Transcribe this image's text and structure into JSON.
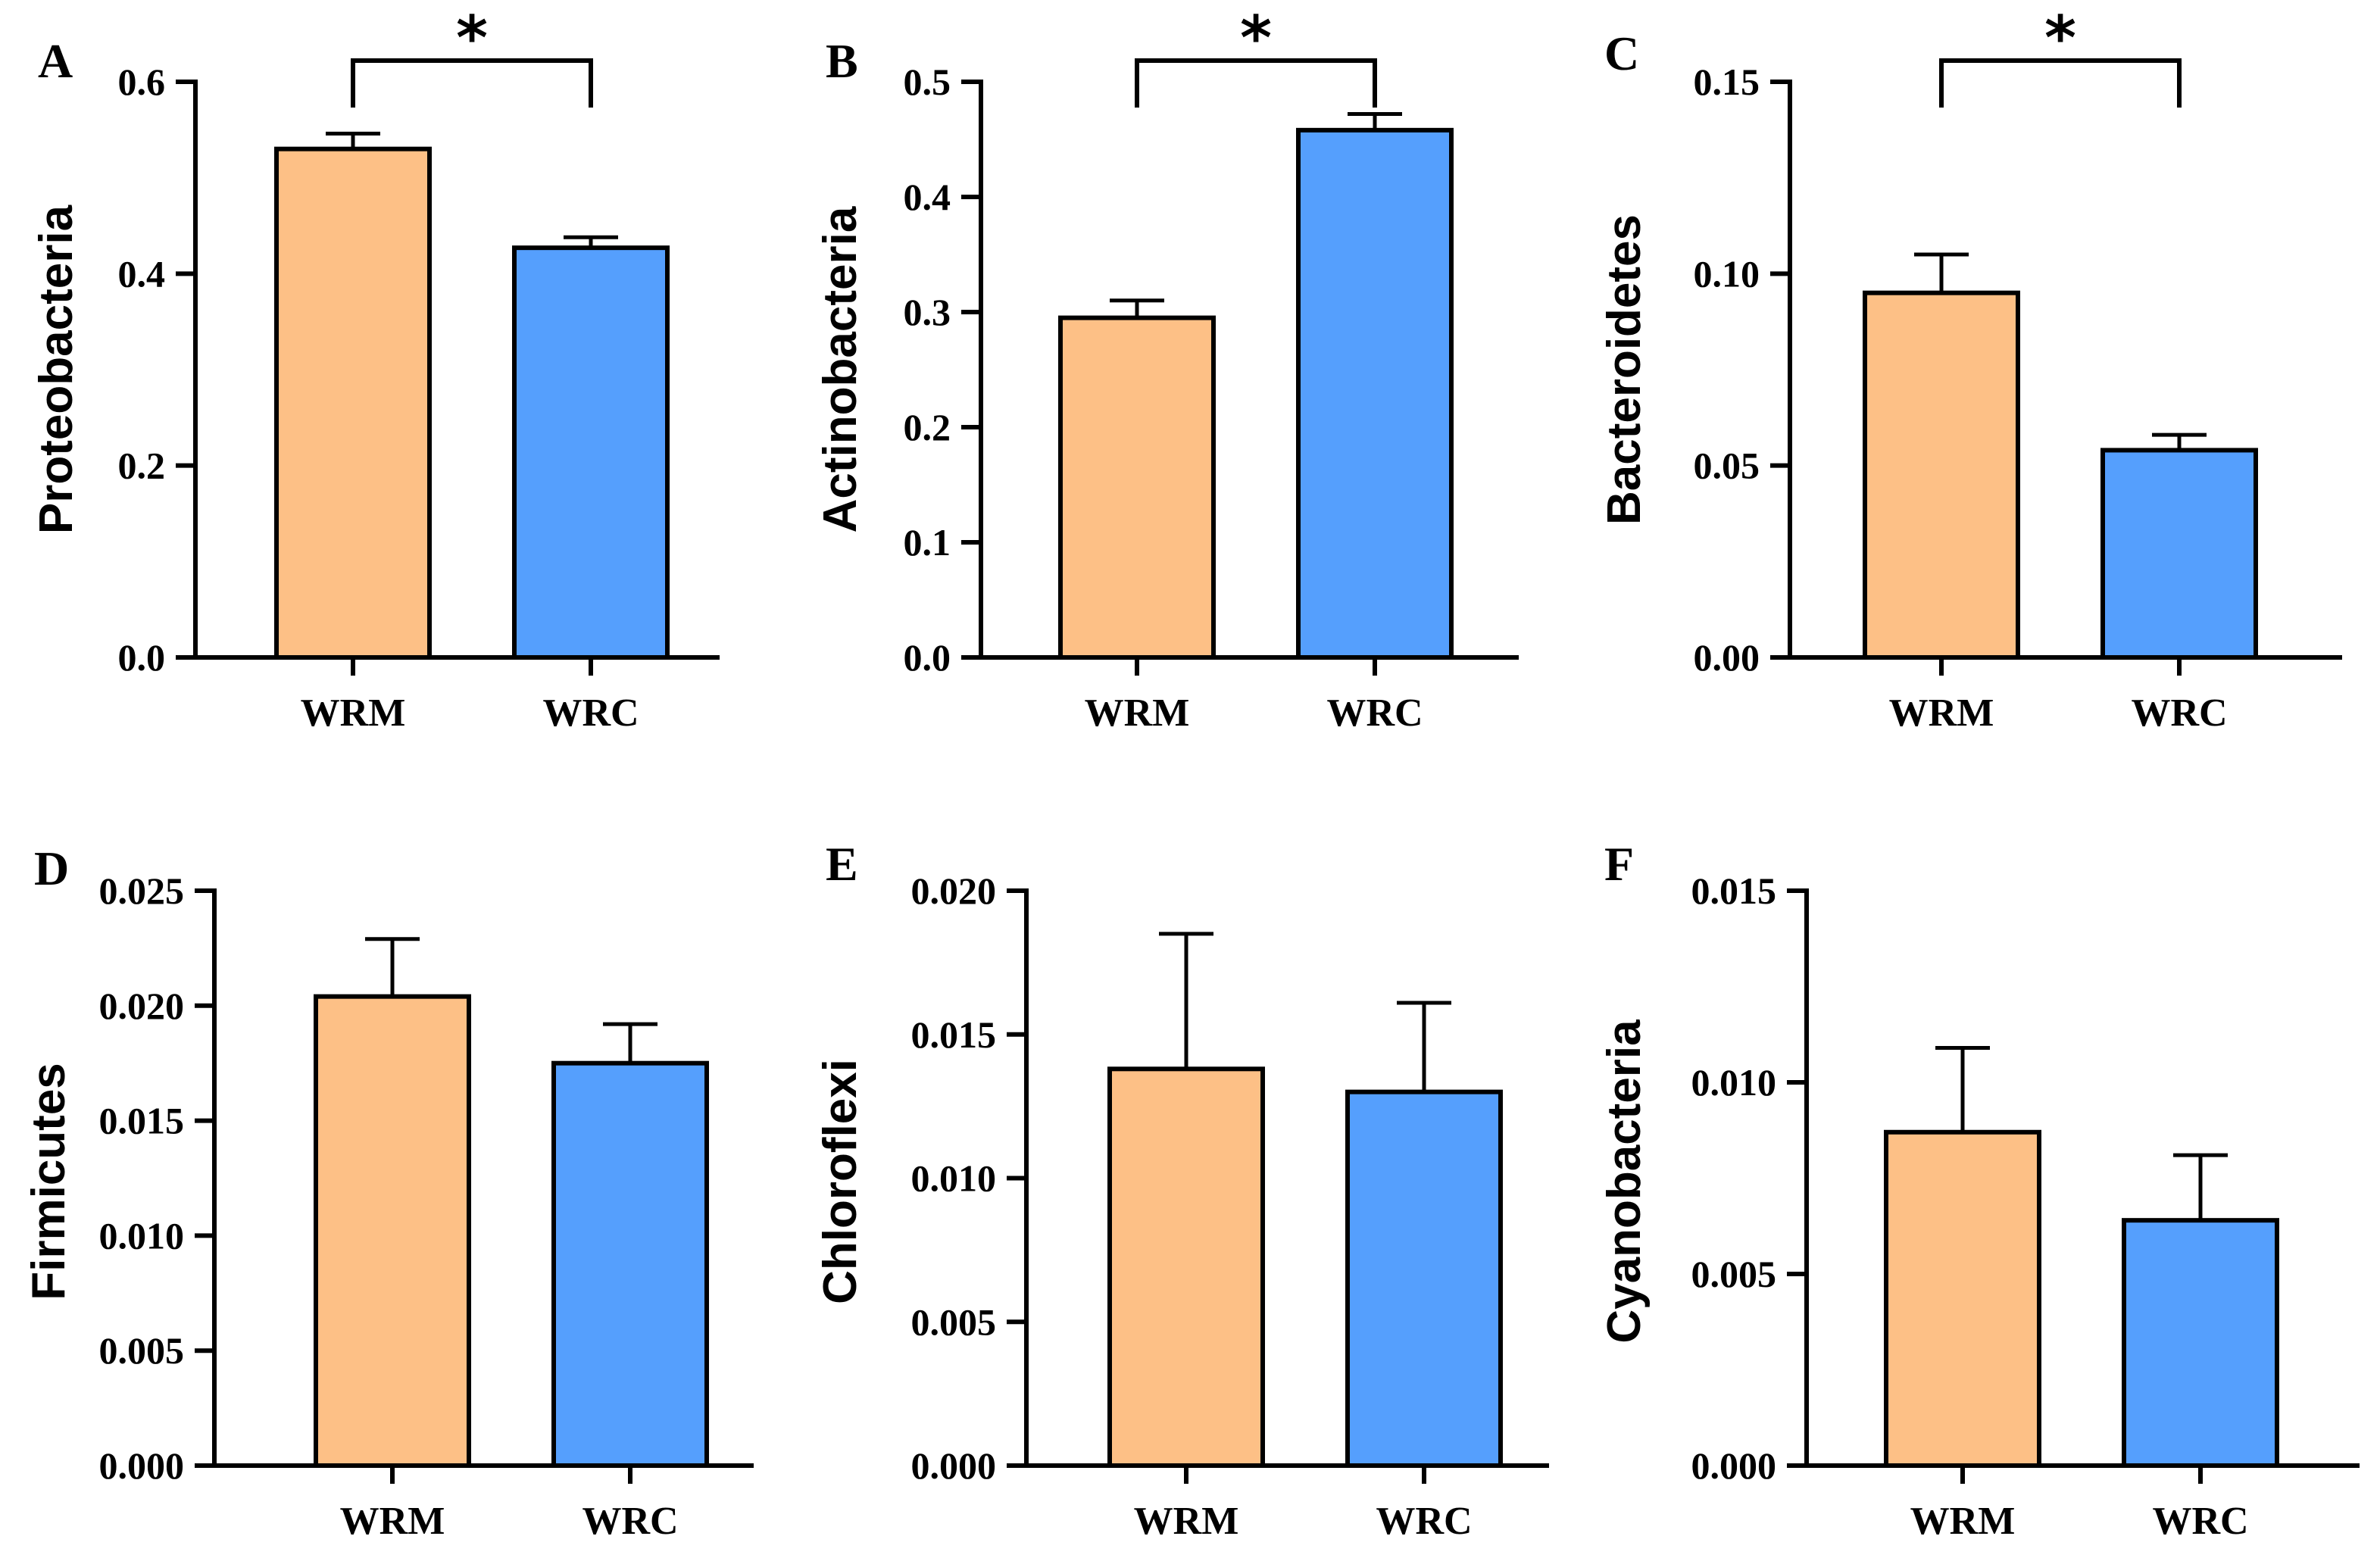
{
  "figure": {
    "colors": {
      "WRM": "#FDC086",
      "WRC": "#559FFD",
      "stroke": "#000000"
    }
  },
  "chart_data": [
    {
      "type": "bar",
      "panel": "A",
      "ylabel": "Proteobacteria",
      "categories": [
        "WRM",
        "WRC"
      ],
      "values": [
        0.53,
        0.427
      ],
      "errors": [
        0.016,
        0.011
      ],
      "ylim": [
        0,
        0.6
      ],
      "yticks": [
        "0.0",
        "0.2",
        "0.4",
        "0.6"
      ],
      "significance": "*"
    },
    {
      "type": "bar",
      "panel": "B",
      "ylabel": "Actinobacteria",
      "categories": [
        "WRM",
        "WRC"
      ],
      "values": [
        0.295,
        0.458
      ],
      "errors": [
        0.015,
        0.014
      ],
      "ylim": [
        0,
        0.5
      ],
      "yticks": [
        "0.0",
        "0.1",
        "0.2",
        "0.3",
        "0.4",
        "0.5"
      ],
      "significance": "*"
    },
    {
      "type": "bar",
      "panel": "C",
      "ylabel": "Bacteroidetes",
      "categories": [
        "WRM",
        "WRC"
      ],
      "values": [
        0.095,
        0.054
      ],
      "errors": [
        0.01,
        0.004
      ],
      "ylim": [
        0,
        0.15
      ],
      "yticks": [
        "0.00",
        "0.05",
        "0.10",
        "0.15"
      ],
      "significance": "*"
    },
    {
      "type": "bar",
      "panel": "D",
      "ylabel": "Firmicutes",
      "categories": [
        "WRM",
        "WRC"
      ],
      "values": [
        0.0204,
        0.0175
      ],
      "errors": [
        0.0025,
        0.0017
      ],
      "ylim": [
        0,
        0.025
      ],
      "yticks": [
        "0.000",
        "0.005",
        "0.010",
        "0.015",
        "0.020",
        "0.025"
      ],
      "significance": ""
    },
    {
      "type": "bar",
      "panel": "E",
      "ylabel": "Chloroflexi",
      "categories": [
        "WRM",
        "WRC"
      ],
      "values": [
        0.0138,
        0.013
      ],
      "errors": [
        0.0047,
        0.0031
      ],
      "ylim": [
        0,
        0.02
      ],
      "yticks": [
        "0.000",
        "0.005",
        "0.010",
        "0.015",
        "0.020"
      ],
      "significance": ""
    },
    {
      "type": "bar",
      "panel": "F",
      "ylabel": "Cyanobacteria",
      "categories": [
        "WRM",
        "WRC"
      ],
      "values": [
        0.0087,
        0.0064
      ],
      "errors": [
        0.0022,
        0.0017
      ],
      "ylim": [
        0,
        0.015
      ],
      "yticks": [
        "0.000",
        "0.005",
        "0.010",
        "0.015"
      ],
      "significance": ""
    }
  ]
}
